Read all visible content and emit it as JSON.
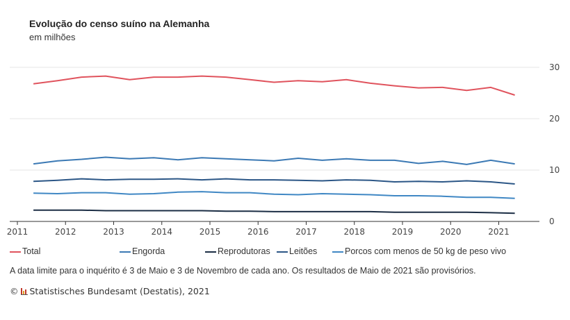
{
  "title": "Evolução do censo suíno na Alemanha",
  "subtitle": "em milhões",
  "note": "A data limite para o inquérito é 3 de Maio e  3 de Novembro de cada ano. Os resultados de Maio de 2021 são provisórios.",
  "source": {
    "symbol": "©",
    "text": "Statistisches Bundesamt (Destatis), 2021"
  },
  "chart_data": {
    "type": "line",
    "title": "Evolução do censo suíno na Alemanha",
    "subtitle": "em milhões",
    "x": [
      "2011-05",
      "2011-11",
      "2012-05",
      "2012-11",
      "2013-05",
      "2013-11",
      "2014-05",
      "2014-11",
      "2015-05",
      "2015-11",
      "2016-05",
      "2016-11",
      "2017-05",
      "2017-11",
      "2018-05",
      "2018-11",
      "2019-05",
      "2019-11",
      "2020-05",
      "2020-11",
      "2021-05"
    ],
    "xticks": [
      "2011",
      "2012",
      "2013",
      "2014",
      "2015",
      "2016",
      "2017",
      "2018",
      "2019",
      "2020",
      "2021"
    ],
    "yticks": [
      0,
      10,
      20,
      30
    ],
    "ylim": [
      0,
      30
    ],
    "grid": true,
    "y_axis_side": "right",
    "legend": "bottom",
    "series": [
      {
        "name": "Total",
        "color": "#e0535d",
        "values": [
          26.8,
          27.4,
          28.1,
          28.3,
          27.6,
          28.1,
          28.1,
          28.3,
          28.1,
          27.6,
          27.1,
          27.4,
          27.2,
          27.6,
          26.9,
          26.4,
          26.0,
          26.1,
          25.5,
          26.1,
          24.6
        ]
      },
      {
        "name": "Engorda",
        "color": "#3b79b4",
        "values": [
          11.2,
          11.8,
          12.1,
          12.5,
          12.2,
          12.4,
          12.0,
          12.4,
          12.2,
          12.0,
          11.8,
          12.3,
          11.9,
          12.2,
          11.9,
          11.9,
          11.3,
          11.7,
          11.1,
          11.9,
          11.2
        ]
      },
      {
        "name": "Reprodutoras",
        "color": "#1b2d44",
        "values": [
          2.2,
          2.2,
          2.2,
          2.1,
          2.1,
          2.1,
          2.1,
          2.1,
          2.0,
          2.0,
          1.9,
          1.9,
          1.9,
          1.9,
          1.9,
          1.8,
          1.8,
          1.8,
          1.8,
          1.7,
          1.6
        ]
      },
      {
        "name": "Leitões",
        "color": "#2b5686",
        "values": [
          7.8,
          8.0,
          8.3,
          8.1,
          8.2,
          8.2,
          8.3,
          8.1,
          8.3,
          8.1,
          8.1,
          8.0,
          7.9,
          8.1,
          8.0,
          7.7,
          7.8,
          7.7,
          7.9,
          7.7,
          7.3
        ]
      },
      {
        "name": "Porcos com menos de 50 kg de peso vivo",
        "color": "#3f87c4",
        "values": [
          5.5,
          5.4,
          5.6,
          5.6,
          5.3,
          5.4,
          5.7,
          5.8,
          5.6,
          5.6,
          5.3,
          5.2,
          5.4,
          5.3,
          5.2,
          5.0,
          5.0,
          4.9,
          4.7,
          4.7,
          4.5
        ]
      }
    ]
  }
}
